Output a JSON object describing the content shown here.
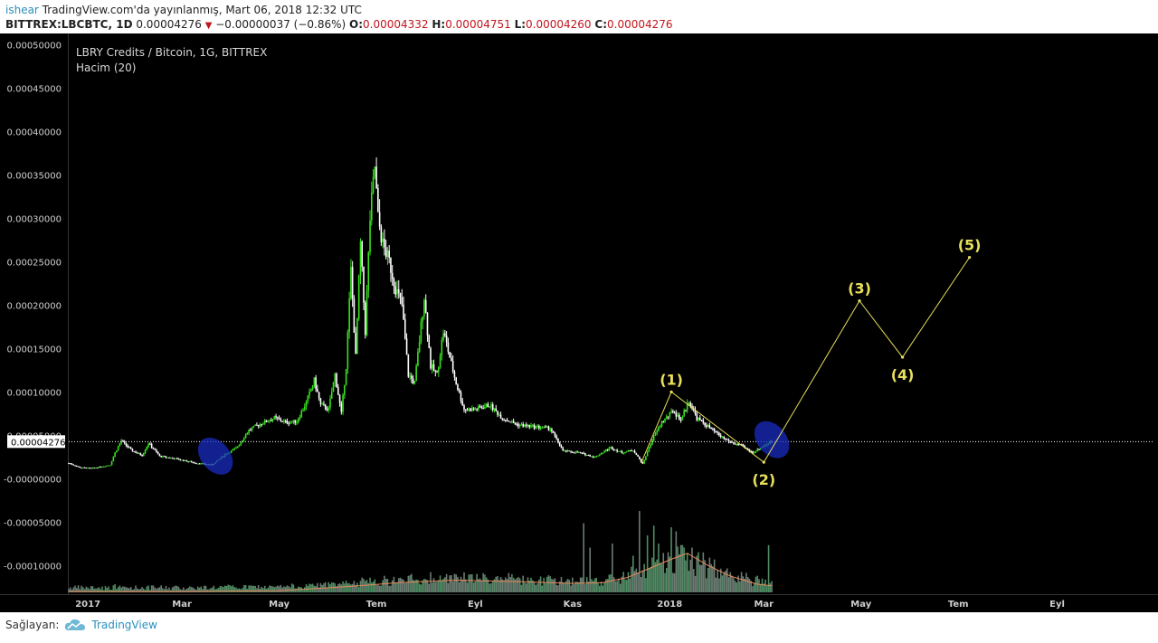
{
  "header": {
    "author": "ishear",
    "published": "TradingView.com'da yayınlanmış, Mart 06, 2018 12:32 UTC",
    "symbol": "BITTREX:LBCBTC, 1D",
    "last": "0.00004276",
    "change": "−0.00000037 (−0.86%)",
    "o_label": "O:",
    "o_value": "0.00004332",
    "h_label": "H:",
    "h_value": "0.00004751",
    "l_label": "L:",
    "l_value": "0.00004260",
    "c_label": "C:",
    "c_value": "0.00004276"
  },
  "legend": {
    "title": "LBRY Credits / Bitcoin, 1G, BITTREX",
    "indicator": "Hacim (20)"
  },
  "footer": {
    "provided_by": "Sağlayan:",
    "brand": "TradingView"
  },
  "colors": {
    "background": "#000000",
    "bull": "#38e01f",
    "bear": "#ffffff",
    "volume_up": "#4f8c63",
    "volume_down": "#6a7d72",
    "volume_ma": "#e8895a",
    "wave": "#e8e05a",
    "ellipse": "#1a2cc8",
    "price_line": "#ffffff",
    "axis_text": "#cfcfcf",
    "header_red": "#c0161d",
    "brand_blue": "#2a8fbd"
  },
  "chart_data": {
    "type": "candlestick",
    "title": "LBRY Credits / Bitcoin, 1G, BITTREX",
    "x_tick_labels": [
      "2017",
      "Mar",
      "May",
      "Tem",
      "Eyl",
      "Kas",
      "2018",
      "Mar",
      "May",
      "Tem",
      "Eyl"
    ],
    "y_tick_labels": [
      "0.00050000",
      "0.00045000",
      "0.00040000",
      "0.00035000",
      "0.00030000",
      "0.00025000",
      "0.00020000",
      "0.00015000",
      "0.00010000",
      "0.00005000",
      "-0.00000000",
      "-0.00005000",
      "-0.00010000"
    ],
    "ylim": [
      -0.000133,
      0.000513
    ],
    "current_price": 4.276e-05,
    "current_price_label": "0.00004276",
    "x_range": [
      "2016-12-20",
      "2018-11-01"
    ],
    "price_path": [
      [
        "2016-12-20",
        1.8e-05
      ],
      [
        "2016-12-27",
        1.3e-05
      ],
      [
        "2017-01-03",
        1.2e-05
      ],
      [
        "2017-01-10",
        1.4e-05
      ],
      [
        "2017-01-15",
        1.6e-05
      ],
      [
        "2017-01-18",
        3e-05
      ],
      [
        "2017-01-22",
        4.4e-05
      ],
      [
        "2017-01-28",
        3.3e-05
      ],
      [
        "2017-02-04",
        2.7e-05
      ],
      [
        "2017-02-08",
        4.1e-05
      ],
      [
        "2017-02-15",
        2.6e-05
      ],
      [
        "2017-02-25",
        2.3e-05
      ],
      [
        "2017-03-10",
        1.8e-05
      ],
      [
        "2017-03-20",
        1.6e-05
      ],
      [
        "2017-03-28",
        2.8e-05
      ],
      [
        "2017-04-04",
        3.5e-05
      ],
      [
        "2017-04-12",
        5.6e-05
      ],
      [
        "2017-04-20",
        6.4e-05
      ],
      [
        "2017-04-28",
        7e-05
      ],
      [
        "2017-05-05",
        6.5e-05
      ],
      [
        "2017-05-12",
        6.6e-05
      ],
      [
        "2017-05-18",
        8.8e-05
      ],
      [
        "2017-05-23",
        0.000113
      ],
      [
        "2017-05-27",
        8.5e-05
      ],
      [
        "2017-06-01",
        8e-05
      ],
      [
        "2017-06-05",
        0.00012
      ],
      [
        "2017-06-09",
        7.5e-05
      ],
      [
        "2017-06-12",
        0.00013
      ],
      [
        "2017-06-15",
        0.00024
      ],
      [
        "2017-06-18",
        0.00014
      ],
      [
        "2017-06-21",
        0.00027
      ],
      [
        "2017-06-24",
        0.00017
      ],
      [
        "2017-06-27",
        0.0003
      ],
      [
        "2017-06-30",
        0.00036
      ],
      [
        "2017-07-02",
        0.0003
      ],
      [
        "2017-07-05",
        0.00027
      ],
      [
        "2017-07-09",
        0.00025
      ],
      [
        "2017-07-13",
        0.00022
      ],
      [
        "2017-07-17",
        0.0002
      ],
      [
        "2017-07-21",
        0.00012
      ],
      [
        "2017-07-25",
        0.00011
      ],
      [
        "2017-07-28",
        0.00016
      ],
      [
        "2017-07-31",
        0.00021
      ],
      [
        "2017-08-04",
        0.00013
      ],
      [
        "2017-08-08",
        0.00012
      ],
      [
        "2017-08-12",
        0.00017
      ],
      [
        "2017-08-16",
        0.00014
      ],
      [
        "2017-08-20",
        0.00011
      ],
      [
        "2017-08-25",
        8e-05
      ],
      [
        "2017-09-01",
        8e-05
      ],
      [
        "2017-09-10",
        8.5e-05
      ],
      [
        "2017-09-18",
        7e-05
      ],
      [
        "2017-09-28",
        6.2e-05
      ],
      [
        "2017-10-08",
        6e-05
      ],
      [
        "2017-10-18",
        5.8e-05
      ],
      [
        "2017-10-26",
        3.2e-05
      ],
      [
        "2017-11-05",
        3e-05
      ],
      [
        "2017-11-15",
        2.5e-05
      ],
      [
        "2017-11-25",
        3.6e-05
      ],
      [
        "2017-12-02",
        3e-05
      ],
      [
        "2017-12-09",
        3.3e-05
      ],
      [
        "2017-12-15",
        1.7e-05
      ],
      [
        "2017-12-21",
        4.5e-05
      ],
      [
        "2017-12-27",
        6.5e-05
      ],
      [
        "2018-01-03",
        7.8e-05
      ],
      [
        "2018-01-08",
        6.8e-05
      ],
      [
        "2018-01-13",
        9e-05
      ],
      [
        "2018-01-18",
        7e-05
      ],
      [
        "2018-01-25",
        6e-05
      ],
      [
        "2018-02-01",
        5e-05
      ],
      [
        "2018-02-08",
        4.2e-05
      ],
      [
        "2018-02-15",
        3.8e-05
      ],
      [
        "2018-02-22",
        3e-05
      ],
      [
        "2018-03-01",
        3.8e-05
      ],
      [
        "2018-03-06",
        4.28e-05
      ]
    ],
    "volume_ma_path": [
      [
        "2016-12-20",
        0.01
      ],
      [
        "2017-03-01",
        0.01
      ],
      [
        "2017-05-01",
        0.02
      ],
      [
        "2017-06-20",
        0.08
      ],
      [
        "2017-07-15",
        0.12
      ],
      [
        "2017-08-20",
        0.15
      ],
      [
        "2017-10-01",
        0.13
      ],
      [
        "2017-11-01",
        0.11
      ],
      [
        "2017-11-20",
        0.12
      ],
      [
        "2017-12-05",
        0.18
      ],
      [
        "2017-12-20",
        0.3
      ],
      [
        "2018-01-01",
        0.4
      ],
      [
        "2018-01-12",
        0.48
      ],
      [
        "2018-01-25",
        0.33
      ],
      [
        "2018-02-08",
        0.2
      ],
      [
        "2018-02-25",
        0.1
      ],
      [
        "2018-03-06",
        0.08
      ]
    ],
    "volume_spikes": [
      [
        "2017-01-18",
        0.1
      ],
      [
        "2017-06-27",
        0.18
      ],
      [
        "2017-07-05",
        0.15
      ],
      [
        "2017-08-01",
        0.16
      ],
      [
        "2017-08-20",
        0.22
      ],
      [
        "2017-09-25",
        0.18
      ],
      [
        "2017-11-08",
        0.85
      ],
      [
        "2017-11-12",
        0.55
      ],
      [
        "2017-11-26",
        0.6
      ],
      [
        "2017-12-09",
        0.45
      ],
      [
        "2017-12-13",
        1.0
      ],
      [
        "2017-12-18",
        0.7
      ],
      [
        "2017-12-22",
        0.82
      ],
      [
        "2017-12-25",
        0.6
      ],
      [
        "2018-01-02",
        0.8
      ],
      [
        "2018-01-05",
        0.75
      ],
      [
        "2018-01-10",
        0.55
      ],
      [
        "2018-01-18",
        0.45
      ],
      [
        "2018-03-04",
        0.58
      ]
    ],
    "wave_points": [
      {
        "label": "(1)",
        "x": "2018-01-02",
        "y": 0.0001
      },
      {
        "label": "(2)",
        "x": "2018-03-01",
        "y": 1.9e-05
      },
      {
        "label": "(3)",
        "x": "2018-04-30",
        "y": 0.000205
      },
      {
        "label": "(4)",
        "x": "2018-05-27",
        "y": 0.00014
      },
      {
        "label": "(5)",
        "x": "2018-07-08",
        "y": 0.000255
      }
    ],
    "wave_start": {
      "x": "2017-12-14",
      "y": 1.8e-05
    },
    "highlight_ellipses": [
      {
        "x": "2017-03-22",
        "y": 2.6e-05
      },
      {
        "x": "2018-03-06",
        "y": 4.5e-05
      }
    ]
  }
}
